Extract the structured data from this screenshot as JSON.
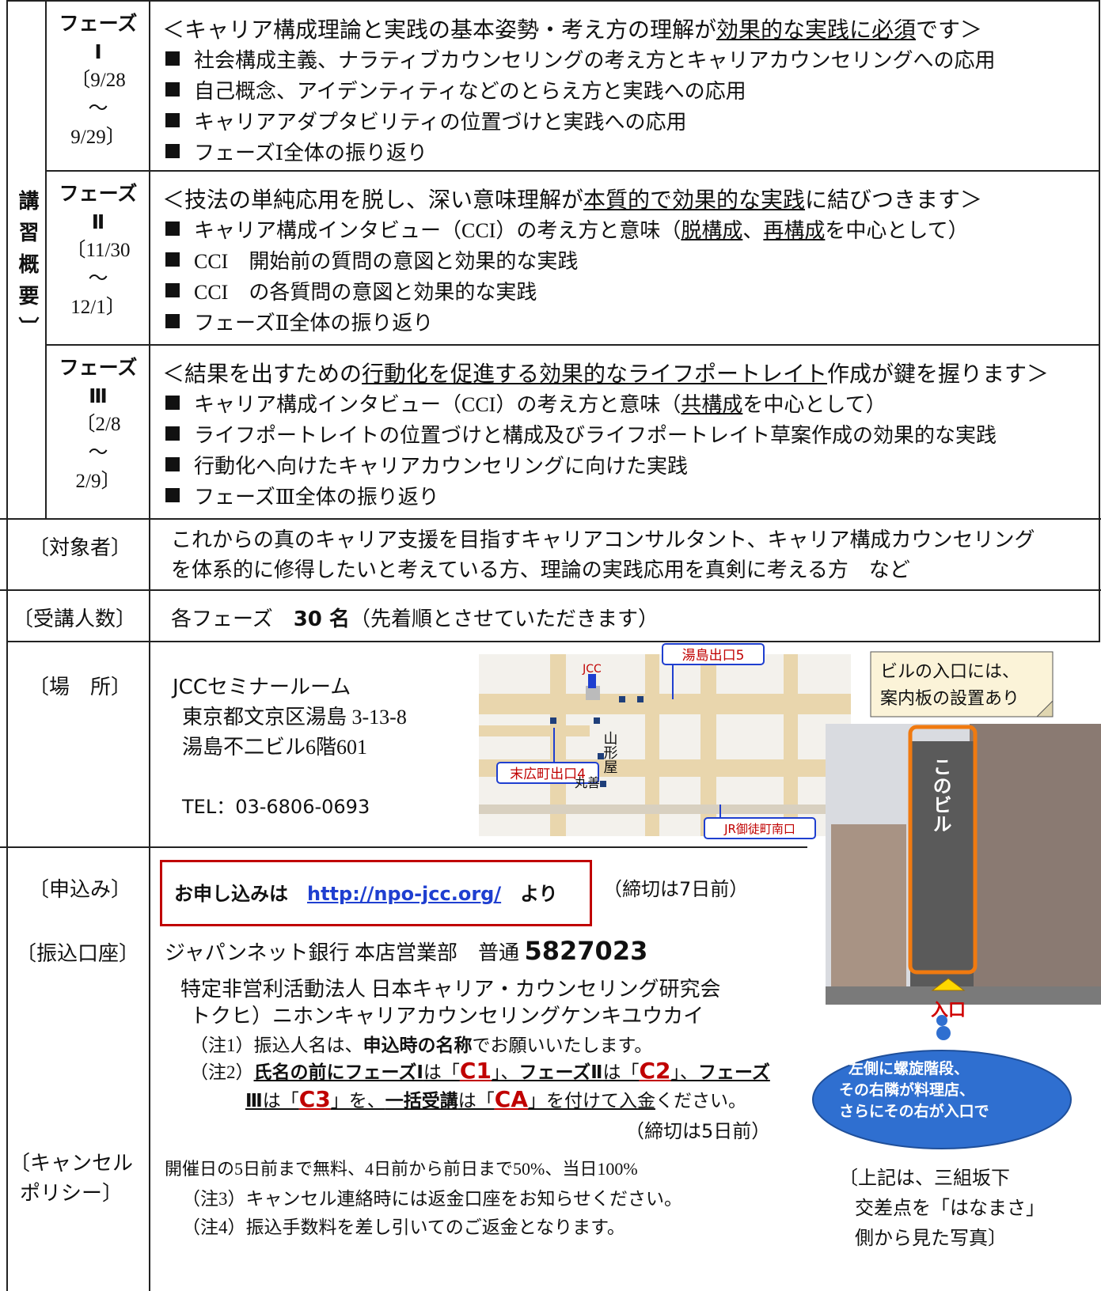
{
  "overview_label": "講習概要〕",
  "phases": [
    {
      "name": "フェーズ",
      "numeral": "Ⅰ",
      "date_start": "〔9/28",
      "tilde": "〜",
      "date_end": "9/29〕",
      "heading": [
        "＜キャリア構成理論と実践の基本姿勢・考え方の理解が",
        "効果的な実践に必須",
        "です＞"
      ],
      "items": [
        [
          "社会構成主義、ナラティブカウンセリングの考え方とキャリアカウンセリングへの応用"
        ],
        [
          "自己概念、アイデンティティなどのとらえ方と実践への応用"
        ],
        [
          "キャリアアダプタビリティの位置づけと実践への応用"
        ],
        [
          "フェーズⅠ全体の振り返り"
        ]
      ]
    },
    {
      "name": "フェーズ",
      "numeral": "Ⅱ",
      "date_start": "〔11/30",
      "tilde": "〜",
      "date_end": "12/1〕",
      "heading": [
        "＜技法の単純応用を脱し、深い意味理解が",
        "本質的で効果的な実践",
        "に結びつきます＞"
      ],
      "items": [
        [
          "キャリア構成インタビュー（CCI）の考え方と意味（",
          "脱構成",
          "、",
          "再構成",
          "を中心として）"
        ],
        [
          "CCI　開始前の質問の意図と効果的な実践"
        ],
        [
          "CCI　の各質問の意図と効果的な実践"
        ],
        [
          "フェーズⅡ全体の振り返り"
        ]
      ]
    },
    {
      "name": "フェーズ",
      "numeral": "Ⅲ",
      "date_start": "〔2/8",
      "tilde": "〜",
      "date_end": "2/9〕",
      "heading": [
        "＜結果を出すための",
        "行動化を促進する効果的なライフポートレイト",
        "作成が鍵を握ります＞"
      ],
      "items": [
        [
          "キャリア構成インタビュー（CCI）の考え方と意味（",
          "共構成",
          "を中心として）"
        ],
        [
          "ライフポートレイトの位置づけと構成及びライフポートレイト草案作成の効果的な実践"
        ],
        [
          "行動化へ向けたキャリアカウンセリングに向けた実践"
        ],
        [
          "フェーズⅢ全体の振り返り"
        ]
      ]
    }
  ],
  "target": {
    "label": "〔対象者〕",
    "text": [
      "これからの真のキャリア支援を目指すキャリアコンサルタント、キャリア構成カウンセリング",
      "を体系的に修得したいと考えている方、理論の実践応用を真剣に考える方　など"
    ]
  },
  "capacity": {
    "label": "〔受講人数〕",
    "text": [
      "各フェーズ　",
      "30 名",
      "（先着順とさせていただきます）"
    ]
  },
  "venue": {
    "label": "〔場　所〕",
    "name": "JCCセミナールーム",
    "address": [
      "東京都文京区湯島 3-13-8",
      "湯島不二ビル6階601"
    ],
    "tel": "TEL：03-6806-0693",
    "map_labels": {
      "jcc": "JCC",
      "yushima_exit": "湯島出口5",
      "suehirocho_exit": "末広町出口4",
      "yamagataya": "山形屋",
      "maruzen": "丸善",
      "okachimachi": "JR御徒町南口"
    },
    "photo": {
      "sign_note": [
        "ビルの入口には、",
        "案内板の設置あり"
      ],
      "this_building": "このビル",
      "entrance": "入口",
      "cloud": [
        "左側に螺旋階段、",
        "その右隣が料理店、",
        "さらにその右が入口で"
      ],
      "caption": [
        "〔上記は、三組坂下",
        "交差点を「はなまさ」",
        "側から見た写真〕"
      ]
    }
  },
  "application": {
    "label": "〔申込み〕",
    "text": [
      "お申し込みは　",
      "http://npo-jcc.org/",
      "　より"
    ],
    "deadline": "（締切は7日前）"
  },
  "transfer": {
    "label": "〔振込口座〕",
    "bank": "ジャパンネット銀行 本店営業部　普通 ",
    "account": "5827023",
    "holder": "特定非営利活動法人 日本キャリア・カウンセリング研究会",
    "holder_kana": "トクヒ）ニホンキャリアカウンセリングケンキユウカイ",
    "note1": [
      "（注1）振込人名は、",
      "申込時の名称",
      "でお願いいたします。"
    ],
    "note2_line1": [
      "（注2）",
      "氏名の前にフェーズⅠ",
      "は「",
      "C1",
      "」、",
      "フェーズⅡ",
      "は「",
      "C2",
      "」、",
      "フェーズ"
    ],
    "note2_line2": [
      "Ⅲ",
      "は「",
      "C3",
      "」を、",
      "一括受講",
      "は「",
      "CA",
      "」を付けて入金",
      "ください。"
    ],
    "deadline": "（締切は5日前）"
  },
  "cancel": {
    "label": [
      "〔キャンセル",
      "ポリシー〕"
    ],
    "text": "開催日の5日前まで無料、4日前から前日まで50%、当日100%",
    "note3": "（注3）キャンセル連絡時には返金口座をお知らせください。",
    "note4": "（注4）振込手数料を差し引いてのご返金となります。"
  }
}
